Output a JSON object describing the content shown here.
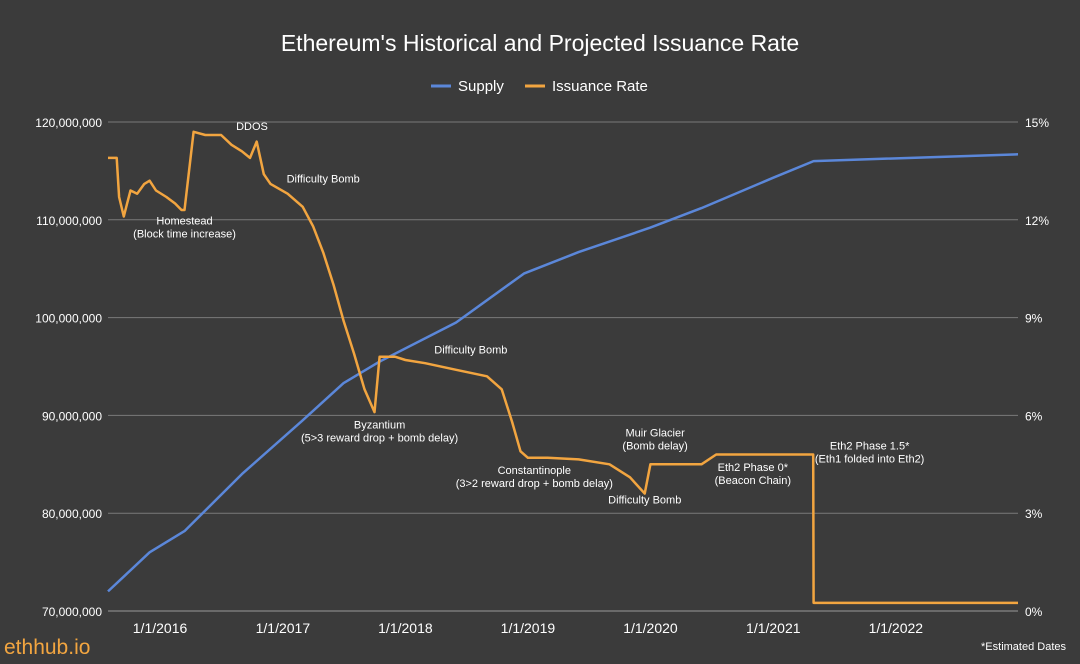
{
  "brand": "ethhub.io",
  "footnote": "*Estimated Dates",
  "colors": {
    "background": "#3b3b3b",
    "grid": "#7a7a7a",
    "supply": "#5b87d9",
    "issuance": "#f2a540",
    "text": "#ffffff"
  },
  "chart_data": {
    "type": "line",
    "title": "Ethereum's Historical and Projected Issuance Rate",
    "legend": {
      "placement": "top-center"
    },
    "grid": true,
    "x_ticks": [
      "1/1/2016",
      "1/1/2017",
      "1/1/2018",
      "1/1/2019",
      "1/1/2020",
      "1/1/2021",
      "1/1/2022"
    ],
    "xlim": [
      "2015-07-30",
      "2022-12-31"
    ],
    "y_left": {
      "range": [
        70000000,
        120000000
      ],
      "ticks": [
        "70,000,000",
        "80,000,000",
        "90,000,000",
        "100,000,000",
        "110,000,000",
        "120,000,000"
      ]
    },
    "y_right": {
      "range": [
        0,
        15
      ],
      "ticks": [
        "0%",
        "3%",
        "6%",
        "9%",
        "12%",
        "15%"
      ]
    },
    "series": [
      {
        "name": "Supply",
        "axis": "left",
        "points": [
          [
            "2015-07-30",
            72000000
          ],
          [
            "2015-12-01",
            76000000
          ],
          [
            "2016-03-15",
            78200000
          ],
          [
            "2016-09-01",
            84000000
          ],
          [
            "2017-03-01",
            89500000
          ],
          [
            "2017-07-01",
            93300000
          ],
          [
            "2017-10-16",
            95500000
          ],
          [
            "2018-06-01",
            99500000
          ],
          [
            "2018-12-20",
            104500000
          ],
          [
            "2019-06-01",
            106700000
          ],
          [
            "2020-01-01",
            109200000
          ],
          [
            "2020-06-01",
            111200000
          ],
          [
            "2021-01-01",
            114300000
          ],
          [
            "2021-05-01",
            116000000
          ],
          [
            "2022-12-31",
            116700000
          ]
        ]
      },
      {
        "name": "Issuance Rate",
        "axis": "right",
        "points": [
          [
            "2015-07-30",
            13.9
          ],
          [
            "2015-08-25",
            13.9
          ],
          [
            "2015-09-01",
            12.7
          ],
          [
            "2015-09-15",
            12.1
          ],
          [
            "2015-09-25",
            12.5
          ],
          [
            "2015-10-05",
            12.9
          ],
          [
            "2015-10-25",
            12.8
          ],
          [
            "2015-11-15",
            13.1
          ],
          [
            "2015-12-01",
            13.2
          ],
          [
            "2015-12-20",
            12.9
          ],
          [
            "2016-01-20",
            12.7
          ],
          [
            "2016-02-15",
            12.5
          ],
          [
            "2016-03-05",
            12.3
          ],
          [
            "2016-03-14",
            12.3
          ],
          [
            "2016-04-10",
            14.7
          ],
          [
            "2016-05-15",
            14.6
          ],
          [
            "2016-07-01",
            14.6
          ],
          [
            "2016-08-01",
            14.3
          ],
          [
            "2016-09-01",
            14.1
          ],
          [
            "2016-09-25",
            13.9
          ],
          [
            "2016-10-15",
            14.4
          ],
          [
            "2016-11-05",
            13.4
          ],
          [
            "2016-11-25",
            13.1
          ],
          [
            "2017-01-15",
            12.8
          ],
          [
            "2017-03-01",
            12.4
          ],
          [
            "2017-04-01",
            11.8
          ],
          [
            "2017-05-01",
            11.0
          ],
          [
            "2017-06-01",
            10.0
          ],
          [
            "2017-07-01",
            8.9
          ],
          [
            "2017-08-01",
            7.9
          ],
          [
            "2017-09-01",
            6.8
          ],
          [
            "2017-10-01",
            6.1
          ],
          [
            "2017-10-16",
            7.8
          ],
          [
            "2017-12-01",
            7.8
          ],
          [
            "2018-01-01",
            7.7
          ],
          [
            "2018-03-01",
            7.6
          ],
          [
            "2018-06-01",
            7.4
          ],
          [
            "2018-09-01",
            7.2
          ],
          [
            "2018-10-15",
            6.8
          ],
          [
            "2018-11-15",
            5.8
          ],
          [
            "2018-12-10",
            4.9
          ],
          [
            "2019-01-01",
            4.7
          ],
          [
            "2019-03-01",
            4.7
          ],
          [
            "2019-06-01",
            4.65
          ],
          [
            "2019-09-01",
            4.5
          ],
          [
            "2019-11-01",
            4.1
          ],
          [
            "2019-12-15",
            3.6
          ],
          [
            "2020-01-01",
            4.5
          ],
          [
            "2020-03-01",
            4.5
          ],
          [
            "2020-06-01",
            4.5
          ],
          [
            "2020-07-15",
            4.8
          ],
          [
            "2020-12-01",
            4.8
          ],
          [
            "2021-04-30",
            4.8
          ],
          [
            "2021-05-01",
            0.25
          ],
          [
            "2022-12-31",
            0.25
          ]
        ]
      }
    ],
    "annotations": [
      {
        "lines": [
          "DDOS"
        ],
        "date": "2016-10-01",
        "value": 14.75
      },
      {
        "lines": [
          "Homestead",
          "(Block time increase)"
        ],
        "date": "2016-03-14",
        "value": 11.85
      },
      {
        "lines": [
          "Difficulty Bomb"
        ],
        "date": "2017-05-01",
        "value": 13.15
      },
      {
        "lines": [
          "Difficulty Bomb"
        ],
        "date": "2018-07-15",
        "value": 7.9
      },
      {
        "lines": [
          "Byzantium",
          "(5>3 reward drop + bomb delay)"
        ],
        "date": "2017-10-16",
        "value": 5.6
      },
      {
        "lines": [
          "Constantinople",
          "(3>2 reward drop + bomb delay)"
        ],
        "date": "2019-01-20",
        "value": 4.2
      },
      {
        "lines": [
          "Muir Glacier",
          "(Bomb delay)"
        ],
        "date": "2020-01-15",
        "value": 5.35
      },
      {
        "lines": [
          "Difficulty Bomb"
        ],
        "date": "2019-12-15",
        "value": 3.3
      },
      {
        "lines": [
          "Eth2 Phase 0*",
          "(Beacon Chain)"
        ],
        "date": "2020-11-01",
        "value": 4.3
      },
      {
        "lines": [
          "Eth2 Phase 1.5*",
          "(Eth1 folded into Eth2)"
        ],
        "date": "2021-10-15",
        "value": 4.95
      }
    ]
  }
}
